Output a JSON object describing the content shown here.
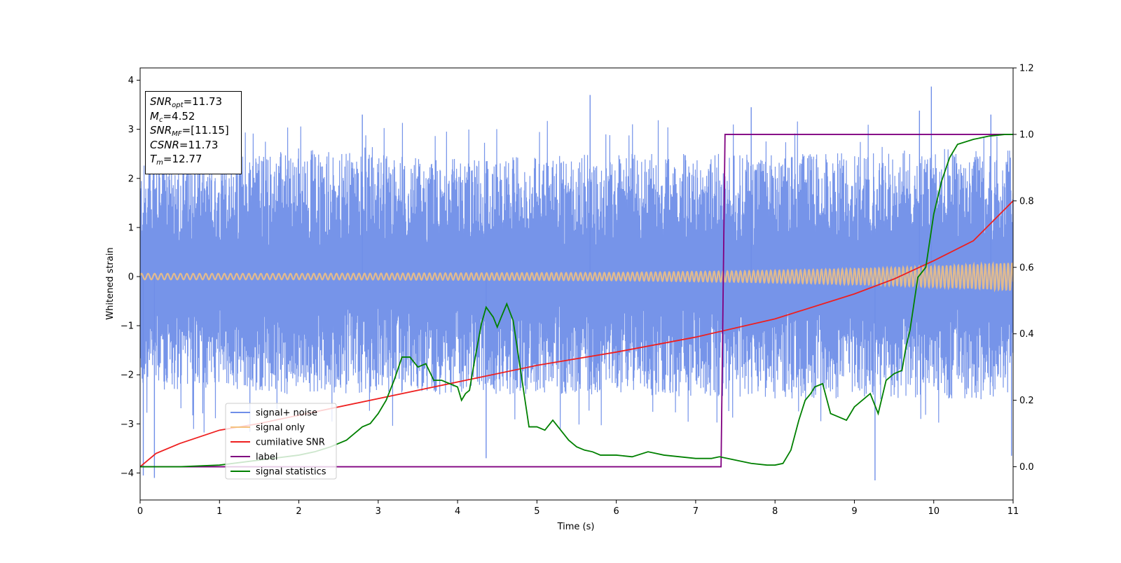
{
  "chart_data": {
    "type": "line",
    "xlabel": "Time (s)",
    "ylabel": "Whitened strain",
    "xlim": [
      0,
      11
    ],
    "ylim": [
      -4.55,
      4.25
    ],
    "y2lim": [
      -0.1,
      1.2
    ],
    "xticks": [
      "0",
      "1",
      "2",
      "3",
      "4",
      "5",
      "6",
      "7",
      "8",
      "9",
      "10",
      "11"
    ],
    "yticks": [
      "−4",
      "−3",
      "−2",
      "−1",
      "0",
      "1",
      "2",
      "3",
      "4"
    ],
    "y2ticks": [
      "0.0",
      "0.2",
      "0.4",
      "0.6",
      "0.8",
      "1.0",
      "1.2"
    ],
    "grid": false,
    "legend_position": "lower-left",
    "annotation": {
      "snr_opt": {
        "sym": "SNR",
        "sub": "opt",
        "val": "=11.73"
      },
      "mc": {
        "sym": "M",
        "sub": "c",
        "val": "=4.52"
      },
      "snr_mf": {
        "sym": "SNR",
        "sub": "MF",
        "val": "=[11.15]"
      },
      "csnr": {
        "sym": "CSNR",
        "val": "=11.73"
      },
      "tm": {
        "sym": "T",
        "sub": "m",
        "val": "=12.77"
      }
    },
    "series": [
      {
        "name": "signal+ noise",
        "color": "#6f8ee8",
        "axis": "left",
        "noise_envelope": {
          "t": [
            0,
            2,
            4,
            6,
            8,
            10,
            11
          ],
          "upper": [
            2.3,
            2.6,
            2.4,
            2.5,
            2.5,
            2.6,
            2.6
          ],
          "lower": [
            -2.3,
            -2.4,
            -2.4,
            -2.4,
            -2.5,
            -2.5,
            -2.5
          ]
        },
        "peaks": [
          {
            "x": 0.04,
            "y": -4.05
          },
          {
            "x": 0.18,
            "y": -4.1
          },
          {
            "x": 2.8,
            "y": 3.3
          },
          {
            "x": 4.36,
            "y": -3.7
          },
          {
            "x": 5.67,
            "y": 3.7
          },
          {
            "x": 7.7,
            "y": 3.45
          },
          {
            "x": 9.26,
            "y": -4.15
          },
          {
            "x": 9.82,
            "y": 3.38
          },
          {
            "x": 9.97,
            "y": 3.87
          },
          {
            "x": 10.72,
            "y": 3.3
          },
          {
            "x": 10.98,
            "y": -3.65
          }
        ]
      },
      {
        "name": "signal only",
        "color": "#f5c27f",
        "axis": "left",
        "amplitude": {
          "t": [
            0,
            2,
            4,
            6,
            7.5,
            8.5,
            9.5,
            10.3,
            11
          ],
          "a": [
            0.06,
            0.06,
            0.07,
            0.08,
            0.11,
            0.14,
            0.18,
            0.23,
            0.28
          ]
        }
      },
      {
        "name": "cumilative SNR",
        "color": "#ee1f1f",
        "axis": "right",
        "x": [
          0,
          0.2,
          0.5,
          1,
          1.5,
          2,
          3,
          4,
          5,
          6,
          7,
          8,
          9,
          9.5,
          10,
          10.5,
          11
        ],
        "values": [
          0.0,
          0.04,
          0.07,
          0.11,
          0.13,
          0.155,
          0.205,
          0.255,
          0.305,
          0.345,
          0.39,
          0.445,
          0.52,
          0.565,
          0.62,
          0.68,
          0.8
        ]
      },
      {
        "name": "label",
        "color": "#800080",
        "axis": "right",
        "x": [
          0,
          7.32,
          7.37,
          11
        ],
        "values": [
          0,
          0,
          1,
          1
        ]
      },
      {
        "name": "signal statistics",
        "color": "#008000",
        "axis": "right",
        "x": [
          0,
          0.5,
          1,
          1.5,
          2,
          2.2,
          2.4,
          2.6,
          2.7,
          2.8,
          2.9,
          3.0,
          3.1,
          3.2,
          3.3,
          3.4,
          3.5,
          3.6,
          3.7,
          3.8,
          3.9,
          4.0,
          4.05,
          4.1,
          4.15,
          4.2,
          4.3,
          4.36,
          4.45,
          4.5,
          4.55,
          4.62,
          4.7,
          4.75,
          4.8,
          4.9,
          5.0,
          5.1,
          5.2,
          5.3,
          5.4,
          5.5,
          5.6,
          5.7,
          5.8,
          6.0,
          6.2,
          6.4,
          6.5,
          6.6,
          6.8,
          7.0,
          7.2,
          7.3,
          7.5,
          7.7,
          7.9,
          8.0,
          8.1,
          8.2,
          8.3,
          8.38,
          8.45,
          8.5,
          8.6,
          8.7,
          8.8,
          8.9,
          9.0,
          9.1,
          9.2,
          9.3,
          9.4,
          9.5,
          9.6,
          9.65,
          9.7,
          9.8,
          9.9,
          10.0,
          10.1,
          10.2,
          10.3,
          10.5,
          10.7,
          10.9,
          11.0
        ],
        "values": [
          0.0,
          0.0,
          0.005,
          0.02,
          0.035,
          0.045,
          0.06,
          0.08,
          0.1,
          0.12,
          0.13,
          0.16,
          0.2,
          0.26,
          0.33,
          0.33,
          0.3,
          0.31,
          0.26,
          0.26,
          0.25,
          0.24,
          0.2,
          0.22,
          0.23,
          0.3,
          0.43,
          0.48,
          0.45,
          0.42,
          0.45,
          0.49,
          0.44,
          0.36,
          0.28,
          0.12,
          0.12,
          0.11,
          0.14,
          0.11,
          0.08,
          0.06,
          0.05,
          0.045,
          0.035,
          0.035,
          0.03,
          0.045,
          0.04,
          0.035,
          0.03,
          0.025,
          0.025,
          0.03,
          0.02,
          0.01,
          0.005,
          0.005,
          0.01,
          0.05,
          0.14,
          0.2,
          0.22,
          0.24,
          0.25,
          0.16,
          0.15,
          0.14,
          0.18,
          0.2,
          0.22,
          0.16,
          0.26,
          0.28,
          0.29,
          0.36,
          0.41,
          0.57,
          0.6,
          0.76,
          0.86,
          0.93,
          0.97,
          0.985,
          0.995,
          1.0,
          1.0
        ]
      }
    ]
  }
}
